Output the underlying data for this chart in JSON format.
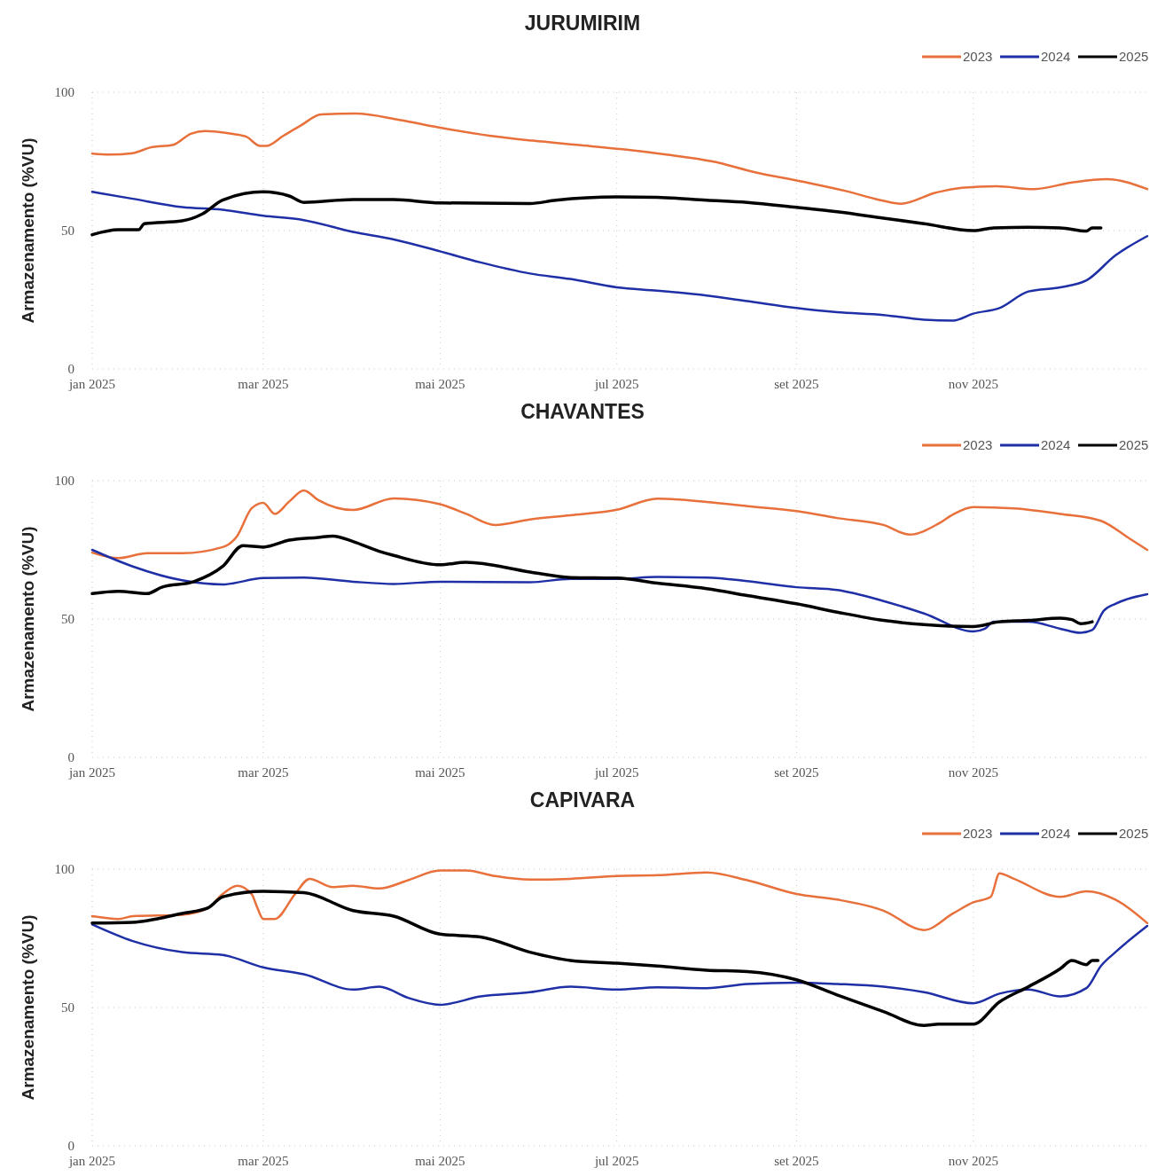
{
  "chart_data": [
    {
      "type": "line",
      "title": "JURUMIRIM",
      "ylabel": "Armazenamento (%VU)",
      "xlim": [
        "2025-01-01",
        "2025-12-31"
      ],
      "ylim": [
        0,
        100
      ],
      "yticks": [
        0,
        50,
        100
      ],
      "xticks": [
        {
          "value": "2025-01-01",
          "label": "jan 2025"
        },
        {
          "value": "2025-03-01",
          "label": "mar 2025"
        },
        {
          "value": "2025-05-01",
          "label": "mai 2025"
        },
        {
          "value": "2025-07-01",
          "label": "jul 2025"
        },
        {
          "value": "2025-09-01",
          "label": "set 2025"
        },
        {
          "value": "2025-11-01",
          "label": "nov 2025"
        }
      ],
      "grid": true,
      "legend": "top right",
      "series": [
        {
          "name": "2023",
          "color": "#e8703a",
          "x": [
            "2025-01-01",
            "2025-01-07",
            "2025-01-15",
            "2025-01-21",
            "2025-01-29",
            "2025-02-04",
            "2025-02-09",
            "2025-02-18",
            "2025-02-23",
            "2025-02-28",
            "2025-03-02",
            "2025-03-08",
            "2025-03-14",
            "2025-03-21",
            "2025-04-02",
            "2025-04-17",
            "2025-05-02",
            "2025-05-18",
            "2025-06-02",
            "2025-06-17",
            "2025-07-03",
            "2025-07-18",
            "2025-08-03",
            "2025-08-18",
            "2025-09-03",
            "2025-09-18",
            "2025-09-30",
            "2025-10-07",
            "2025-10-19",
            "2025-10-28",
            "2025-11-09",
            "2025-11-22",
            "2025-12-05",
            "2025-12-17",
            "2025-12-31"
          ],
          "values": [
            77.8,
            77.5,
            78,
            80,
            81,
            85,
            86,
            85,
            84,
            80.6,
            80.6,
            84.3,
            88,
            92,
            92.3,
            90,
            87,
            84.3,
            82.5,
            81,
            79.4,
            77.5,
            75,
            71,
            67.7,
            64.3,
            61,
            59.7,
            63.7,
            65.5,
            66,
            65,
            67.4,
            68.6,
            65
          ]
        },
        {
          "name": "2024",
          "color": "#1f2fa6",
          "x": [
            "2025-01-01",
            "2025-01-15",
            "2025-02-01",
            "2025-02-15",
            "2025-03-01",
            "2025-03-15",
            "2025-04-01",
            "2025-04-15",
            "2025-05-01",
            "2025-05-15",
            "2025-06-01",
            "2025-06-15",
            "2025-07-01",
            "2025-07-15",
            "2025-08-01",
            "2025-08-15",
            "2025-09-01",
            "2025-09-15",
            "2025-10-01",
            "2025-10-15",
            "2025-10-25",
            "2025-11-01",
            "2025-11-10",
            "2025-11-20",
            "2025-12-01",
            "2025-12-10",
            "2025-12-20",
            "2025-12-31"
          ],
          "values": [
            64,
            61.5,
            58.5,
            57.5,
            55.4,
            53.8,
            49.5,
            46.8,
            42.5,
            38.5,
            34.5,
            32.5,
            29.5,
            28.3,
            26.5,
            24.5,
            22,
            20.5,
            19.5,
            17.8,
            17.5,
            20,
            22,
            28,
            29.5,
            32,
            41,
            48
          ]
        },
        {
          "name": "2025",
          "color": "#000000",
          "x": [
            "2025-01-01",
            "2025-01-10",
            "2025-01-17",
            "2025-01-19",
            "2025-02-01",
            "2025-02-08",
            "2025-02-15",
            "2025-03-01",
            "2025-03-10",
            "2025-03-15",
            "2025-04-01",
            "2025-04-15",
            "2025-05-01",
            "2025-06-01",
            "2025-06-10",
            "2025-07-01",
            "2025-07-15",
            "2025-08-01",
            "2025-08-15",
            "2025-09-01",
            "2025-09-15",
            "2025-10-01",
            "2025-10-15",
            "2025-11-01",
            "2025-11-08",
            "2025-11-20",
            "2025-12-01",
            "2025-12-10",
            "2025-12-12",
            "2025-12-15"
          ],
          "values": [
            48.5,
            50.3,
            50.3,
            52.5,
            53.5,
            56,
            61,
            64,
            62.5,
            60.2,
            61.2,
            61.2,
            60,
            59.8,
            61,
            62.2,
            62,
            61,
            60.2,
            58.4,
            56.8,
            54.5,
            52.5,
            50,
            51,
            51.2,
            51,
            49.8,
            51,
            51
          ]
        }
      ]
    },
    {
      "type": "line",
      "title": "CHAVANTES",
      "ylabel": "Armazenamento (%VU)",
      "xlim": [
        "2025-01-01",
        "2025-12-31"
      ],
      "ylim": [
        0,
        100
      ],
      "yticks": [
        0,
        50,
        100
      ],
      "xticks": [
        {
          "value": "2025-01-01",
          "label": "jan 2025"
        },
        {
          "value": "2025-03-01",
          "label": "mar 2025"
        },
        {
          "value": "2025-05-01",
          "label": "mai 2025"
        },
        {
          "value": "2025-07-01",
          "label": "jul 2025"
        },
        {
          "value": "2025-09-01",
          "label": "set 2025"
        },
        {
          "value": "2025-11-01",
          "label": "nov 2025"
        }
      ],
      "grid": true,
      "legend": "top right",
      "series": [
        {
          "name": "2023",
          "color": "#e8703a",
          "x": [
            "2025-01-01",
            "2025-01-10",
            "2025-01-20",
            "2025-02-01",
            "2025-02-15",
            "2025-02-20",
            "2025-02-25",
            "2025-03-01",
            "2025-03-05",
            "2025-03-10",
            "2025-03-15",
            "2025-03-20",
            "2025-04-01",
            "2025-04-15",
            "2025-05-01",
            "2025-05-10",
            "2025-05-20",
            "2025-06-01",
            "2025-06-15",
            "2025-07-01",
            "2025-07-15",
            "2025-08-01",
            "2025-08-15",
            "2025-09-01",
            "2025-09-15",
            "2025-10-01",
            "2025-10-10",
            "2025-10-20",
            "2025-10-25",
            "2025-11-01",
            "2025-11-15",
            "2025-12-01",
            "2025-12-15",
            "2025-12-25",
            "2025-12-31"
          ],
          "values": [
            74,
            72,
            73.8,
            73.8,
            76,
            80,
            90,
            92,
            88,
            92.5,
            96.5,
            93,
            89.4,
            93.6,
            91.5,
            88,
            84,
            86,
            87.5,
            89.5,
            93.5,
            92.3,
            90.8,
            89,
            86.5,
            84,
            80.5,
            84.5,
            87.8,
            90.5,
            90,
            88,
            85.5,
            79,
            75
          ]
        },
        {
          "name": "2024",
          "color": "#1f2fa6",
          "x": [
            "2025-01-01",
            "2025-01-15",
            "2025-02-01",
            "2025-02-15",
            "2025-03-01",
            "2025-03-15",
            "2025-04-01",
            "2025-04-15",
            "2025-05-01",
            "2025-06-01",
            "2025-06-15",
            "2025-07-01",
            "2025-07-15",
            "2025-08-01",
            "2025-08-15",
            "2025-09-01",
            "2025-09-15",
            "2025-10-01",
            "2025-10-15",
            "2025-11-01",
            "2025-11-05",
            "2025-11-08",
            "2025-11-20",
            "2025-12-01",
            "2025-12-08",
            "2025-12-12",
            "2025-12-16",
            "2025-12-20",
            "2025-12-31"
          ],
          "values": [
            75,
            69,
            64,
            62.5,
            64.8,
            65,
            63.5,
            62.7,
            63.5,
            63.3,
            64.5,
            64.5,
            65.2,
            65,
            63.7,
            61.5,
            60.5,
            56.5,
            52,
            45.5,
            46.5,
            49,
            49,
            46.5,
            45,
            46,
            53,
            55.5,
            59
          ]
        },
        {
          "name": "2025",
          "color": "#000000",
          "x": [
            "2025-01-01",
            "2025-01-10",
            "2025-01-20",
            "2025-01-25",
            "2025-02-05",
            "2025-02-15",
            "2025-02-22",
            "2025-03-01",
            "2025-03-10",
            "2025-03-20",
            "2025-03-25",
            "2025-04-01",
            "2025-04-10",
            "2025-04-15",
            "2025-05-01",
            "2025-05-10",
            "2025-06-01",
            "2025-06-15",
            "2025-07-01",
            "2025-07-15",
            "2025-08-01",
            "2025-08-15",
            "2025-09-01",
            "2025-09-15",
            "2025-10-01",
            "2025-10-15",
            "2025-11-01",
            "2025-11-10",
            "2025-11-20",
            "2025-12-01",
            "2025-12-05",
            "2025-12-08",
            "2025-12-12"
          ],
          "values": [
            59.2,
            60,
            59.2,
            61.5,
            63.5,
            69,
            76.5,
            76,
            78.5,
            79.5,
            80,
            78,
            74.5,
            73,
            69.6,
            70.5,
            67,
            65,
            64.8,
            63,
            61,
            58.5,
            55.5,
            52.5,
            49.5,
            48,
            47.3,
            49,
            49.5,
            50.3,
            49.8,
            48.3,
            49
          ]
        }
      ]
    },
    {
      "type": "line",
      "title": "CAPIVARA",
      "ylabel": "Armazenamento (%VU)",
      "xlim": [
        "2025-01-01",
        "2025-12-31"
      ],
      "ylim": [
        0,
        100
      ],
      "yticks": [
        0,
        50,
        100
      ],
      "xticks": [
        {
          "value": "2025-01-01",
          "label": "jan 2025"
        },
        {
          "value": "2025-03-01",
          "label": "mar 2025"
        },
        {
          "value": "2025-05-01",
          "label": "mai 2025"
        },
        {
          "value": "2025-07-01",
          "label": "jul 2025"
        },
        {
          "value": "2025-09-01",
          "label": "set 2025"
        },
        {
          "value": "2025-11-01",
          "label": "nov 2025"
        }
      ],
      "grid": true,
      "legend": "top right",
      "series": [
        {
          "name": "2023",
          "color": "#e8703a",
          "x": [
            "2025-01-01",
            "2025-01-10",
            "2025-01-15",
            "2025-02-01",
            "2025-02-10",
            "2025-02-15",
            "2025-02-20",
            "2025-02-25",
            "2025-02-27",
            "2025-03-01",
            "2025-03-05",
            "2025-03-12",
            "2025-03-17",
            "2025-03-25",
            "2025-04-01",
            "2025-04-10",
            "2025-04-20",
            "2025-05-01",
            "2025-05-10",
            "2025-05-20",
            "2025-06-01",
            "2025-06-15",
            "2025-07-01",
            "2025-07-15",
            "2025-08-01",
            "2025-08-15",
            "2025-09-01",
            "2025-09-15",
            "2025-10-01",
            "2025-10-15",
            "2025-10-25",
            "2025-11-01",
            "2025-11-07",
            "2025-11-10",
            "2025-11-15",
            "2025-12-01",
            "2025-12-10",
            "2025-12-20",
            "2025-12-31"
          ],
          "values": [
            83,
            82,
            83,
            83.5,
            86,
            91,
            94,
            91,
            86,
            82,
            82,
            91,
            96.5,
            93.5,
            94,
            93,
            96,
            99.5,
            99.5,
            97.5,
            96.2,
            96.5,
            97.5,
            97.8,
            98.8,
            96,
            91,
            89,
            85,
            78,
            84,
            88,
            90,
            98.5,
            96.5,
            90,
            92,
            89,
            80.5
          ]
        },
        {
          "name": "2024",
          "color": "#1f2fa6",
          "x": [
            "2025-01-01",
            "2025-01-15",
            "2025-02-01",
            "2025-02-15",
            "2025-03-01",
            "2025-03-15",
            "2025-04-01",
            "2025-04-10",
            "2025-04-20",
            "2025-05-01",
            "2025-05-15",
            "2025-06-01",
            "2025-06-15",
            "2025-07-01",
            "2025-07-15",
            "2025-08-01",
            "2025-08-15",
            "2025-09-01",
            "2025-09-15",
            "2025-10-01",
            "2025-10-15",
            "2025-11-01",
            "2025-11-10",
            "2025-11-20",
            "2025-12-01",
            "2025-12-10",
            "2025-12-15",
            "2025-12-20",
            "2025-12-31"
          ],
          "values": [
            80,
            74,
            70,
            69,
            64.5,
            62,
            56.5,
            57.5,
            53.5,
            51,
            54,
            55.5,
            57.5,
            56.5,
            57.3,
            57,
            58.5,
            59,
            58.5,
            57.5,
            55.5,
            51.5,
            55,
            56.5,
            54,
            57,
            65,
            70,
            79.5
          ]
        },
        {
          "name": "2025",
          "color": "#000000",
          "x": [
            "2025-01-01",
            "2025-01-15",
            "2025-02-01",
            "2025-02-10",
            "2025-02-15",
            "2025-03-01",
            "2025-03-15",
            "2025-04-01",
            "2025-04-15",
            "2025-05-01",
            "2025-05-15",
            "2025-06-01",
            "2025-06-15",
            "2025-07-01",
            "2025-07-15",
            "2025-08-01",
            "2025-08-15",
            "2025-09-01",
            "2025-09-15",
            "2025-10-01",
            "2025-10-15",
            "2025-10-20",
            "2025-11-01",
            "2025-11-10",
            "2025-11-20",
            "2025-12-01",
            "2025-12-05",
            "2025-12-10",
            "2025-12-12",
            "2025-12-14"
          ],
          "values": [
            80.5,
            80.8,
            84,
            86,
            90,
            92,
            91.5,
            85,
            83,
            76.5,
            75.5,
            70,
            67,
            66,
            65,
            63.5,
            63,
            60,
            54.5,
            48.5,
            43.5,
            44,
            44,
            52,
            57.5,
            64,
            67,
            65.5,
            67,
            67
          ]
        }
      ]
    }
  ]
}
